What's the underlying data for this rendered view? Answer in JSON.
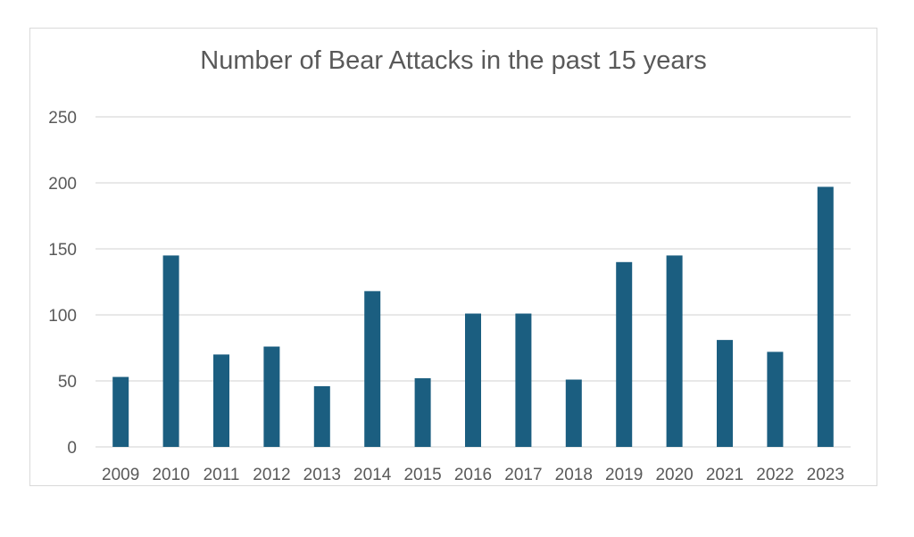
{
  "chart_data": {
    "type": "bar",
    "title": "Number of Bear Attacks in the past 15 years",
    "xlabel": "",
    "ylabel": "",
    "categories": [
      "2009",
      "2010",
      "2011",
      "2012",
      "2013",
      "2014",
      "2015",
      "2016",
      "2017",
      "2018",
      "2019",
      "2020",
      "2021",
      "2022",
      "2023"
    ],
    "values": [
      53,
      145,
      70,
      76,
      46,
      118,
      52,
      101,
      101,
      51,
      140,
      145,
      81,
      72,
      197
    ],
    "ylim": [
      0,
      250
    ],
    "yticks": [
      "0",
      "50",
      "100",
      "150",
      "200",
      "250"
    ],
    "grid": true,
    "legend": "none",
    "colors": {
      "bar": "#1b5e80",
      "grid": "#d9d9d9",
      "text": "#595959"
    }
  }
}
